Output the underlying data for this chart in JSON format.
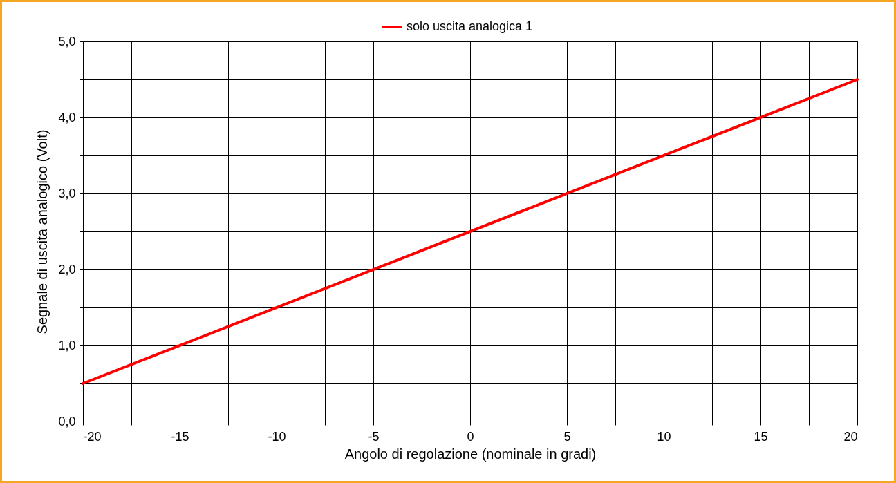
{
  "chart_data": {
    "type": "line",
    "xlabel": "Angolo di regolazione (nominale in gradi)",
    "ylabel": "Segnale di uscita analogico (Volt)",
    "x": [
      -20,
      20
    ],
    "series": [
      {
        "name": "solo uscita analogica 1",
        "color": "#ff0000",
        "values": [
          0.5,
          4.5
        ]
      }
    ],
    "xlim": [
      -20,
      20
    ],
    "xticks": [
      -20,
      {
        "value": -17.5,
        "label": null
      },
      -15,
      {
        "value": -12.5,
        "label": null
      },
      -10,
      {
        "value": -7.5,
        "label": null
      },
      -5,
      {
        "value": -2.5,
        "label": null
      },
      0,
      {
        "value": 2.5,
        "label": null
      },
      5,
      {
        "value": 7.5,
        "label": null
      },
      10,
      {
        "value": 12.5,
        "label": null
      },
      15,
      {
        "value": 17.5,
        "label": null
      },
      20
    ],
    "ylim": [
      0,
      5
    ],
    "yticks": [
      {
        "value": 0,
        "label": "0,0"
      },
      {
        "value": 0.5,
        "label": null
      },
      {
        "value": 1,
        "label": "1,0"
      },
      {
        "value": 1.5,
        "label": null
      },
      {
        "value": 2,
        "label": "2,0"
      },
      {
        "value": 2.5,
        "label": null
      },
      {
        "value": 3,
        "label": "3,0"
      },
      {
        "value": 3.5,
        "label": null
      },
      {
        "value": 4,
        "label": "4,0"
      },
      {
        "value": 4.5,
        "label": null
      },
      {
        "value": 5,
        "label": "5,0"
      }
    ],
    "grid": true,
    "legend": "top",
    "line_style": "solid",
    "marker": "none"
  }
}
